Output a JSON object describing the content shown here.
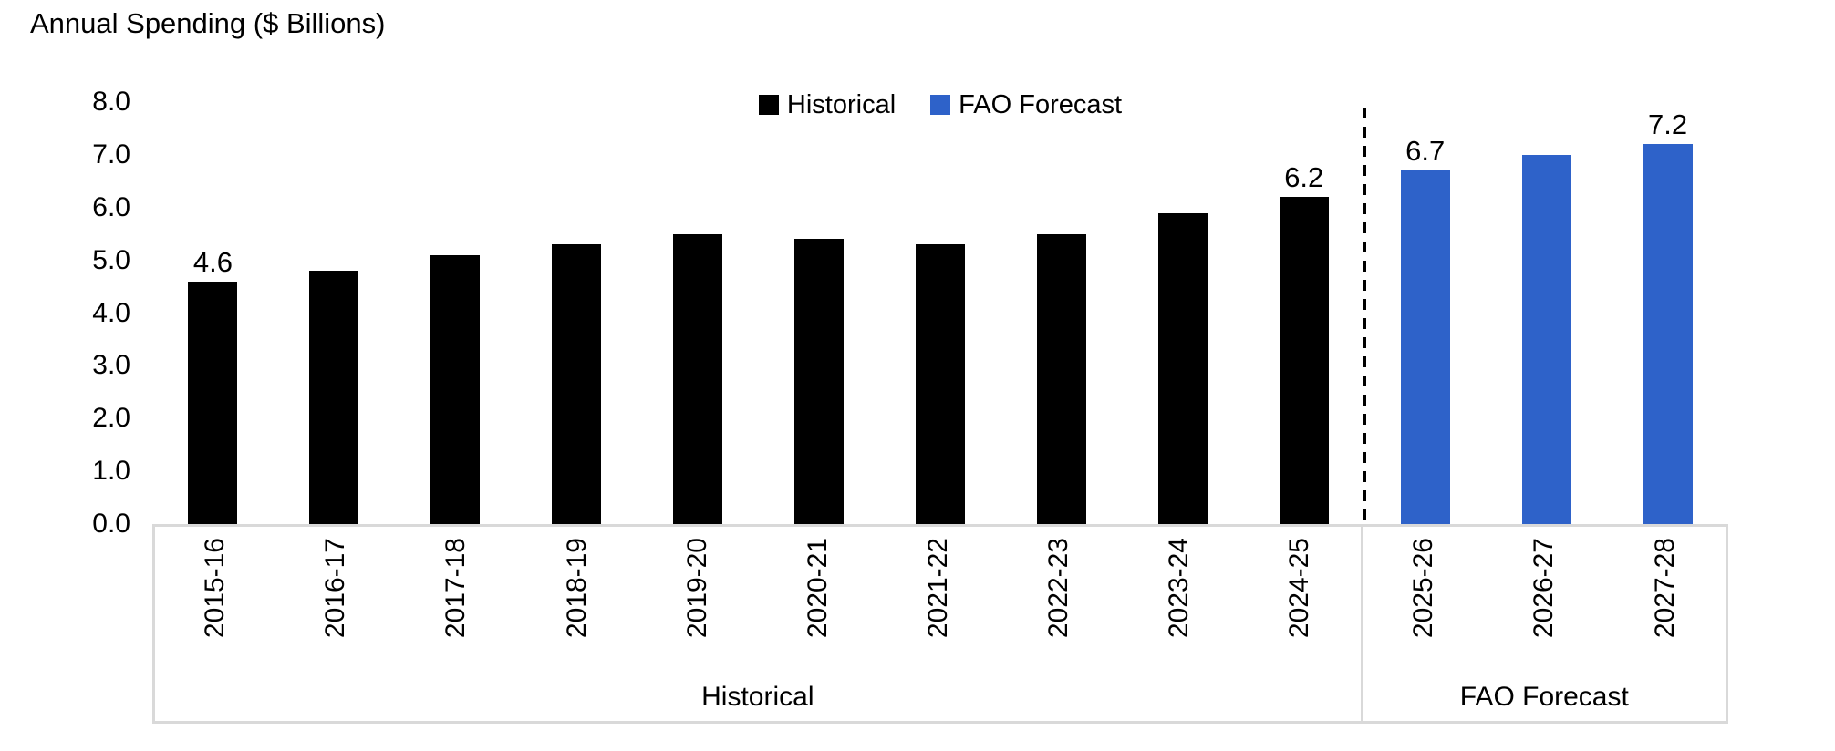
{
  "page": {
    "background": "#FFFFFF"
  },
  "colors": {
    "box_border": "#D9D9D9",
    "separator": "#000000",
    "text": "#000000"
  },
  "chart_data": {
    "type": "bar",
    "title": "Annual Spending ($ Billions)",
    "ylim": [
      0,
      8
    ],
    "ytick_labels": [
      "0.0",
      "1.0",
      "2.0",
      "3.0",
      "4.0",
      "5.0",
      "6.0",
      "7.0",
      "8.0"
    ],
    "grid": false,
    "legend_position": "top-center",
    "categories": [
      "2015-16",
      "2016-17",
      "2017-18",
      "2018-19",
      "2019-20",
      "2020-21",
      "2021-22",
      "2022-23",
      "2023-24",
      "2024-25",
      "2025-26",
      "2026-27",
      "2027-28"
    ],
    "series": [
      {
        "name": "Historical",
        "color": "#000000",
        "values": [
          4.6,
          4.8,
          5.1,
          5.3,
          5.5,
          5.4,
          5.3,
          5.5,
          5.9,
          6.2,
          null,
          null,
          null
        ]
      },
      {
        "name": "FAO Forecast",
        "color": "#2E62C9",
        "values": [
          null,
          null,
          null,
          null,
          null,
          null,
          null,
          null,
          null,
          null,
          6.7,
          7.0,
          7.2
        ]
      }
    ],
    "data_labels": [
      {
        "category": "2015-16",
        "text": "4.6"
      },
      {
        "category": "2024-25",
        "text": "6.2"
      },
      {
        "category": "2025-26",
        "text": "6.7"
      },
      {
        "category": "2027-28",
        "text": "7.2"
      }
    ],
    "group_axis": [
      {
        "label": "Historical",
        "span": 10
      },
      {
        "label": "FAO Forecast",
        "span": 3
      }
    ],
    "separator": {
      "after_category": "2024-25",
      "style": "dashed",
      "color": "#000000"
    }
  }
}
